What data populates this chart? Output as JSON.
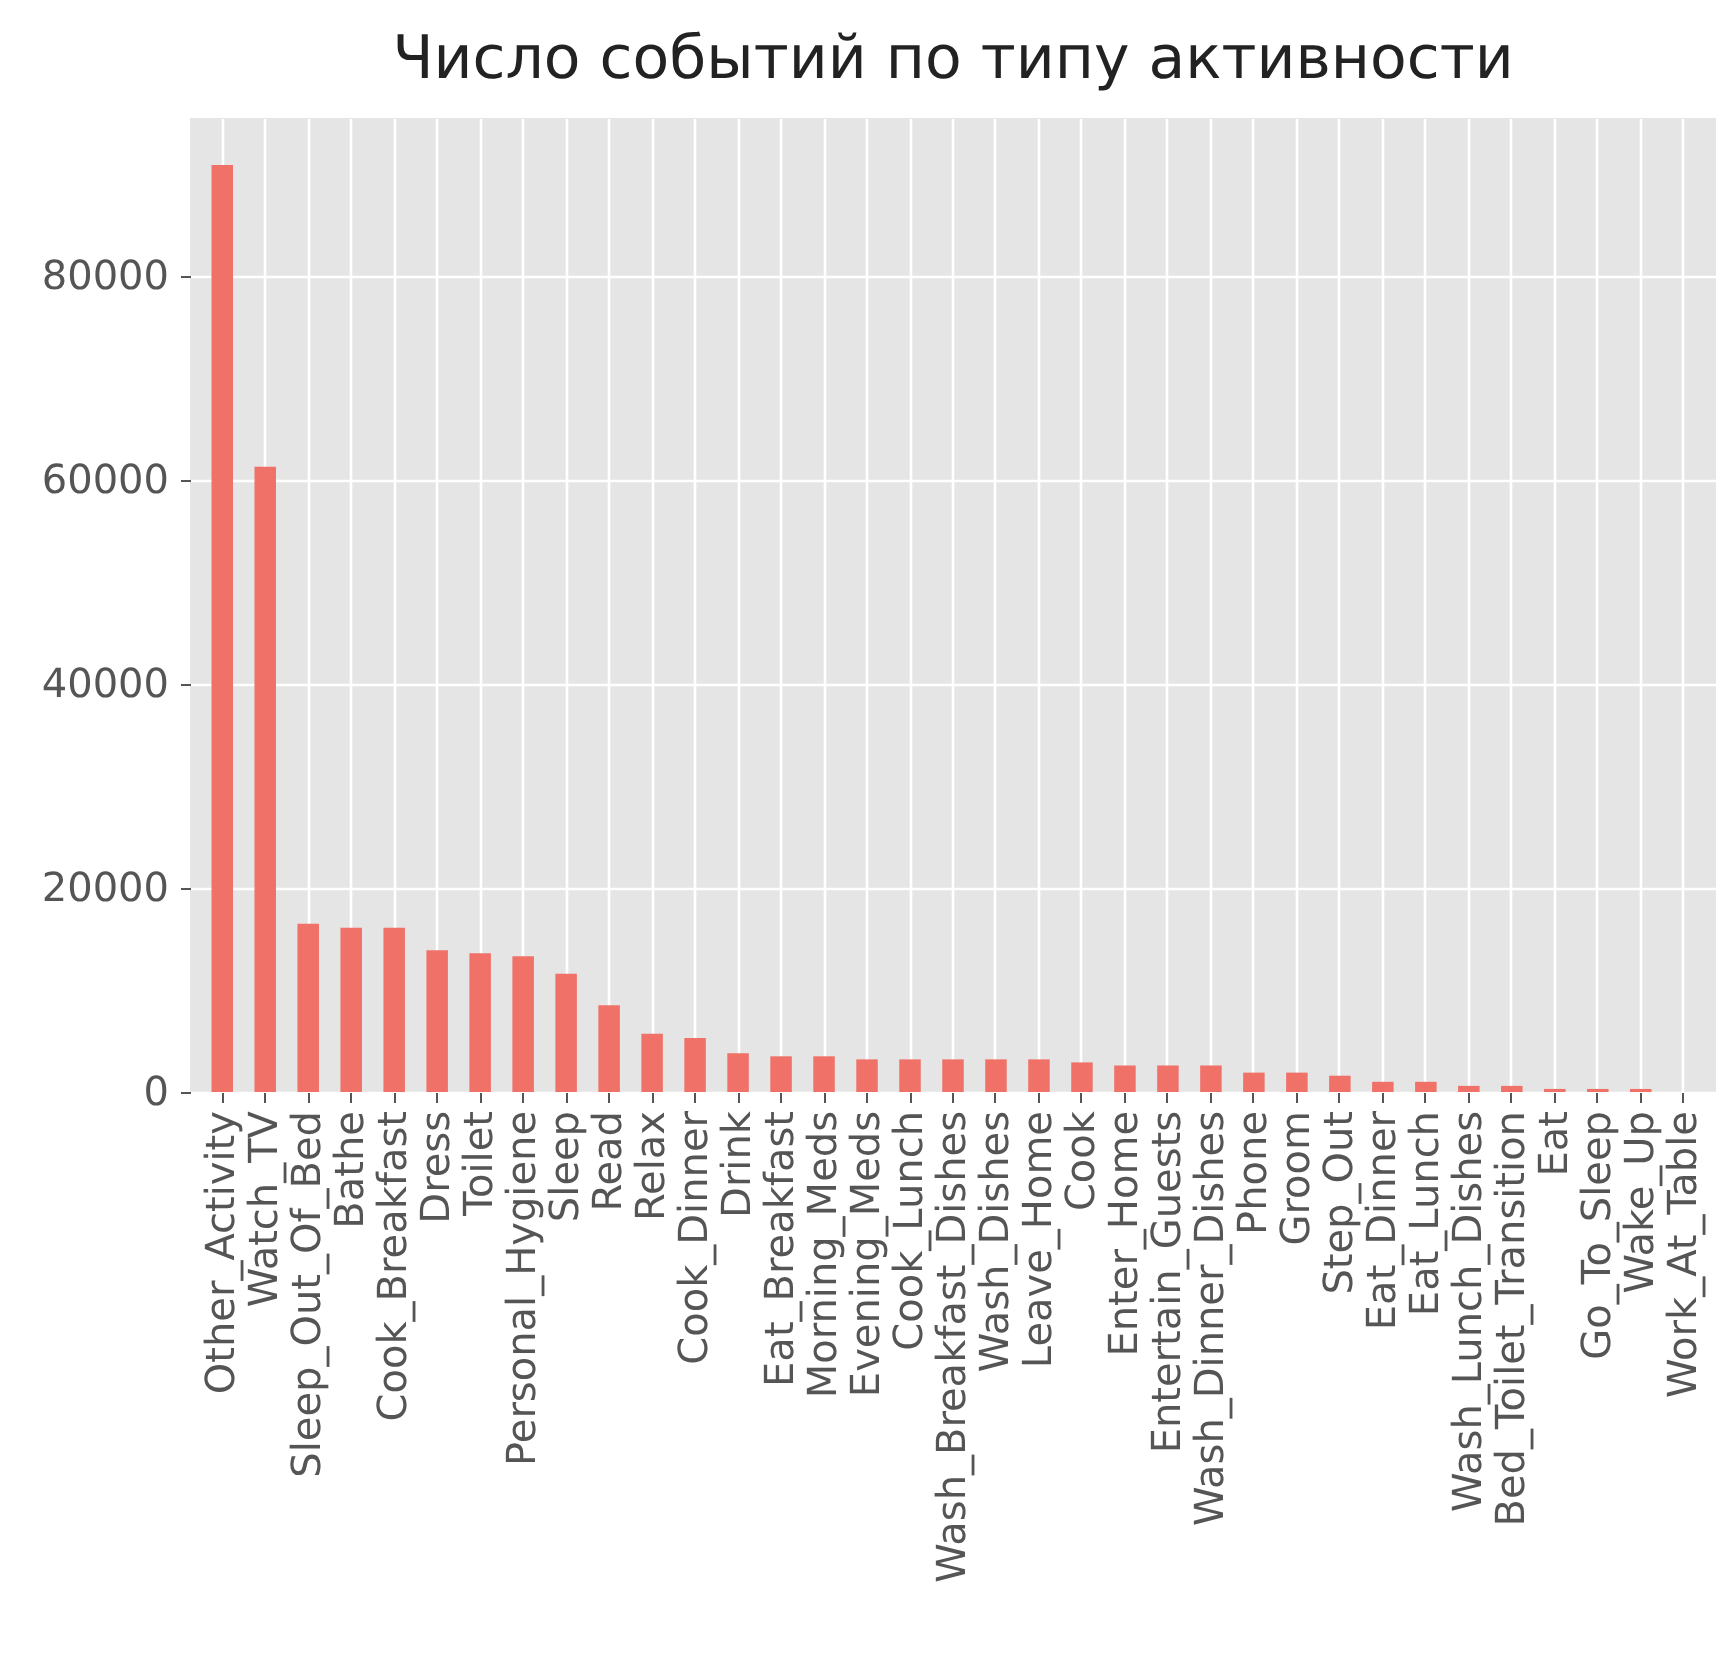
{
  "chart_data": {
    "type": "bar",
    "title": "Число событий по типу активности",
    "categories": [
      "Other_Activity",
      "Watch_TV",
      "Sleep_Out_Of_Bed",
      "Bathe",
      "Cook_Breakfast",
      "Dress",
      "Toilet",
      "Personal_Hygiene",
      "Sleep",
      "Read",
      "Relax",
      "Cook_Dinner",
      "Drink",
      "Eat_Breakfast",
      "Morning_Meds",
      "Evening_Meds",
      "Cook_Lunch",
      "Wash_Breakfast_Dishes",
      "Wash_Dishes",
      "Leave_Home",
      "Cook",
      "Enter_Home",
      "Entertain_Guests",
      "Wash_Dinner_Dishes",
      "Phone",
      "Groom",
      "Step_Out",
      "Eat_Dinner",
      "Eat_Lunch",
      "Wash_Lunch_Dishes",
      "Bed_Toilet_Transition",
      "Eat",
      "Go_To_Sleep",
      "Wake_Up",
      "Work_At_Table"
    ],
    "values": [
      90900,
      61300,
      16500,
      16100,
      16100,
      13900,
      13600,
      13300,
      11600,
      8500,
      5700,
      5300,
      3800,
      3500,
      3500,
      3200,
      3200,
      3200,
      3200,
      3200,
      2900,
      2600,
      2600,
      2600,
      1900,
      1900,
      1600,
      1000,
      1000,
      600,
      600,
      300,
      300,
      300,
      null
    ],
    "color": "#ef7168",
    "ylim": [
      0,
      95500
    ],
    "yticks": [
      0,
      20000,
      40000,
      60000,
      80000
    ],
    "grid": true
  }
}
